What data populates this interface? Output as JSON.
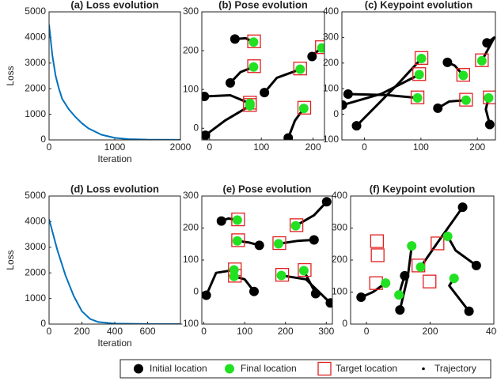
{
  "chart_data": [
    {
      "type": "line",
      "title": "(a) Loss evolution",
      "xlabel": "Iteration",
      "ylabel": "Loss",
      "color": "#0072bd",
      "x": [
        0,
        25,
        50,
        100,
        150,
        200,
        300,
        400,
        500,
        600,
        800,
        1000,
        1200,
        1500,
        2000
      ],
      "values": [
        4500,
        3900,
        3300,
        2500,
        2000,
        1600,
        1200,
        900,
        650,
        450,
        200,
        80,
        30,
        10,
        5
      ],
      "xlim": [
        0,
        2000
      ],
      "xticks": [
        0,
        1000,
        2000
      ],
      "ylim": [
        0,
        5000
      ],
      "yticks": [
        0,
        1000,
        2000,
        3000,
        4000,
        5000
      ]
    },
    {
      "type": "scatter",
      "title": "(b) Pose evolution",
      "xlim": [
        -15,
        222
      ],
      "xticks": [
        0,
        100,
        200
      ],
      "ylim": [
        -30,
        300
      ],
      "yticks": [
        0,
        100,
        200,
        300
      ],
      "initial": {
        "x": [
          49,
          40,
          -10,
          -8,
          106,
          152,
          198
        ],
        "y": [
          230,
          117,
          82,
          -18,
          92,
          -25,
          185
        ]
      },
      "final": {
        "x": [
          85,
          85,
          78,
          78,
          175,
          182,
          217
        ],
        "y": [
          222,
          158,
          64,
          58,
          152,
          51,
          207
        ]
      },
      "target": {
        "x": [
          86,
          86,
          78,
          78,
          175,
          183,
          217
        ],
        "y": [
          224,
          160,
          66,
          60,
          154,
          53,
          209
        ]
      },
      "trajectories": [
        {
          "x": [
            49,
            70,
            85
          ],
          "y": [
            230,
            232,
            222
          ]
        },
        {
          "x": [
            40,
            60,
            85
          ],
          "y": [
            117,
            145,
            158
          ]
        },
        {
          "x": [
            -10,
            40,
            78
          ],
          "y": [
            82,
            85,
            64
          ]
        },
        {
          "x": [
            -8,
            30,
            78
          ],
          "y": [
            -18,
            20,
            58
          ]
        },
        {
          "x": [
            106,
            130,
            175
          ],
          "y": [
            92,
            130,
            152
          ]
        },
        {
          "x": [
            152,
            165,
            182
          ],
          "y": [
            -25,
            20,
            51
          ]
        },
        {
          "x": [
            198,
            205,
            217
          ],
          "y": [
            185,
            195,
            207
          ]
        }
      ]
    },
    {
      "type": "scatter",
      "title": "(c) Keypoint evolution",
      "xlim": [
        -40,
        232
      ],
      "xticks": [
        0,
        100,
        200
      ],
      "ylim": [
        -100,
        400
      ],
      "yticks": [
        -100,
        0,
        100,
        200,
        300,
        400
      ],
      "initial": {
        "x": [
          -29,
          -39,
          -14,
          147,
          130,
          217,
          222
        ],
        "y": [
          79,
          36,
          -45,
          203,
          24,
          279,
          -40
        ]
      },
      "final": {
        "x": [
          101,
          97,
          94,
          175,
          180,
          208,
          220
        ],
        "y": [
          218,
          155,
          64,
          152,
          55,
          209,
          64
        ]
      },
      "target": {
        "x": [
          101,
          97,
          94,
          175,
          180,
          208,
          222
        ],
        "y": [
          220,
          157,
          66,
          154,
          57,
          211,
          66
        ]
      },
      "trajectories": [
        {
          "x": [
            -29,
            40,
            94
          ],
          "y": [
            79,
            75,
            64
          ]
        },
        {
          "x": [
            -39,
            30,
            97
          ],
          "y": [
            36,
            80,
            155
          ]
        },
        {
          "x": [
            -14,
            60,
            101
          ],
          "y": [
            -45,
            120,
            218
          ]
        },
        {
          "x": [
            147,
            160,
            175
          ],
          "y": [
            203,
            190,
            152
          ]
        },
        {
          "x": [
            130,
            150,
            180
          ],
          "y": [
            24,
            50,
            55
          ]
        },
        {
          "x": [
            217,
            230,
            208
          ],
          "y": [
            279,
            300,
            209
          ]
        },
        {
          "x": [
            222,
            215,
            220
          ],
          "y": [
            -40,
            20,
            64
          ]
        }
      ]
    },
    {
      "type": "line",
      "title": "(d) Loss evolution",
      "xlabel": "Iteration",
      "ylabel": "Loss",
      "color": "#0072bd",
      "x": [
        0,
        25,
        50,
        75,
        100,
        150,
        200,
        250,
        300,
        400,
        600,
        800
      ],
      "values": [
        4100,
        3500,
        2900,
        2400,
        1900,
        1100,
        500,
        200,
        80,
        20,
        5,
        5
      ],
      "xlim": [
        0,
        800
      ],
      "xticks": [
        0,
        200,
        400,
        600
      ],
      "ylim": [
        0,
        5000
      ],
      "yticks": [
        0,
        1000,
        2000,
        3000,
        4000,
        5000
      ]
    },
    {
      "type": "scatter",
      "title": "(e) Pose evolution",
      "xlim": [
        -5,
        315
      ],
      "xticks": [
        0,
        100,
        200,
        300
      ],
      "ylim": [
        -100,
        300
      ],
      "yticks": [
        -100,
        0,
        100,
        200,
        300
      ],
      "initial": {
        "x": [
          43,
          136,
          6,
          123,
          270,
          274,
          310,
          301
        ],
        "y": [
          222,
          146,
          -10,
          2,
          163,
          -5,
          -34,
          282
        ]
      },
      "final": {
        "x": [
          82,
          82,
          74,
          74,
          183,
          190,
          225,
          245
        ],
        "y": [
          225,
          160,
          69,
          49,
          151,
          52,
          207,
          67
        ]
      },
      "target": {
        "x": [
          84,
          84,
          76,
          76,
          185,
          192,
          227,
          247
        ],
        "y": [
          227,
          162,
          71,
          51,
          153,
          54,
          209,
          69
        ]
      },
      "trajectories": [
        {
          "x": [
            43,
            60,
            82
          ],
          "y": [
            222,
            230,
            225
          ]
        },
        {
          "x": [
            136,
            110,
            82
          ],
          "y": [
            146,
            155,
            160
          ]
        },
        {
          "x": [
            6,
            30,
            74
          ],
          "y": [
            -10,
            60,
            69
          ]
        },
        {
          "x": [
            123,
            100,
            74
          ],
          "y": [
            2,
            40,
            49
          ]
        },
        {
          "x": [
            270,
            230,
            183
          ],
          "y": [
            163,
            160,
            151
          ]
        },
        {
          "x": [
            274,
            260,
            245
          ],
          "y": [
            -5,
            30,
            67
          ]
        },
        {
          "x": [
            310,
            250,
            190
          ],
          "y": [
            -34,
            40,
            52
          ]
        },
        {
          "x": [
            301,
            270,
            225
          ],
          "y": [
            282,
            240,
            207
          ]
        }
      ]
    },
    {
      "type": "scatter",
      "title": "(f) Keypoint evolution",
      "xlim": [
        -50,
        400
      ],
      "xticks": [
        0,
        200,
        400
      ],
      "ylim": [
        0,
        400
      ],
      "yticks": [
        0,
        100,
        200,
        300,
        400
      ],
      "initial": {
        "x": [
          -17,
          120,
          105,
          302,
          345,
          322
        ],
        "y": [
          84,
          151,
          44,
          365,
          183,
          40
        ]
      },
      "final": {
        "x": [
          60,
          102,
          142,
          170,
          255,
          275
        ],
        "y": [
          128,
          91,
          244,
          178,
          274,
          143
        ]
      },
      "target": {
        "x": [
          33,
          35,
          30,
          198,
          223,
          163
        ],
        "y": [
          259,
          215,
          128,
          133,
          252,
          183
        ]
      },
      "trajectories": [
        {
          "x": [
            -17,
            20,
            60
          ],
          "y": [
            84,
            100,
            128
          ]
        },
        {
          "x": [
            120,
            110,
            102
          ],
          "y": [
            151,
            120,
            91
          ]
        },
        {
          "x": [
            105,
            130,
            142
          ],
          "y": [
            44,
            150,
            244
          ]
        },
        {
          "x": [
            302,
            220,
            170
          ],
          "y": [
            365,
            250,
            178
          ]
        },
        {
          "x": [
            345,
            280,
            255
          ],
          "y": [
            183,
            230,
            274
          ]
        },
        {
          "x": [
            322,
            260,
            275
          ],
          "y": [
            40,
            120,
            143
          ]
        }
      ]
    }
  ],
  "legend": [
    {
      "name": "Initial location",
      "color": "#000000",
      "marker": "circle"
    },
    {
      "name": "Final location",
      "color": "#22e022",
      "marker": "circle"
    },
    {
      "name": "Target location",
      "color": "#e02020",
      "marker": "square"
    },
    {
      "name": "Trajectory",
      "color": "#000000",
      "marker": "dot"
    }
  ]
}
